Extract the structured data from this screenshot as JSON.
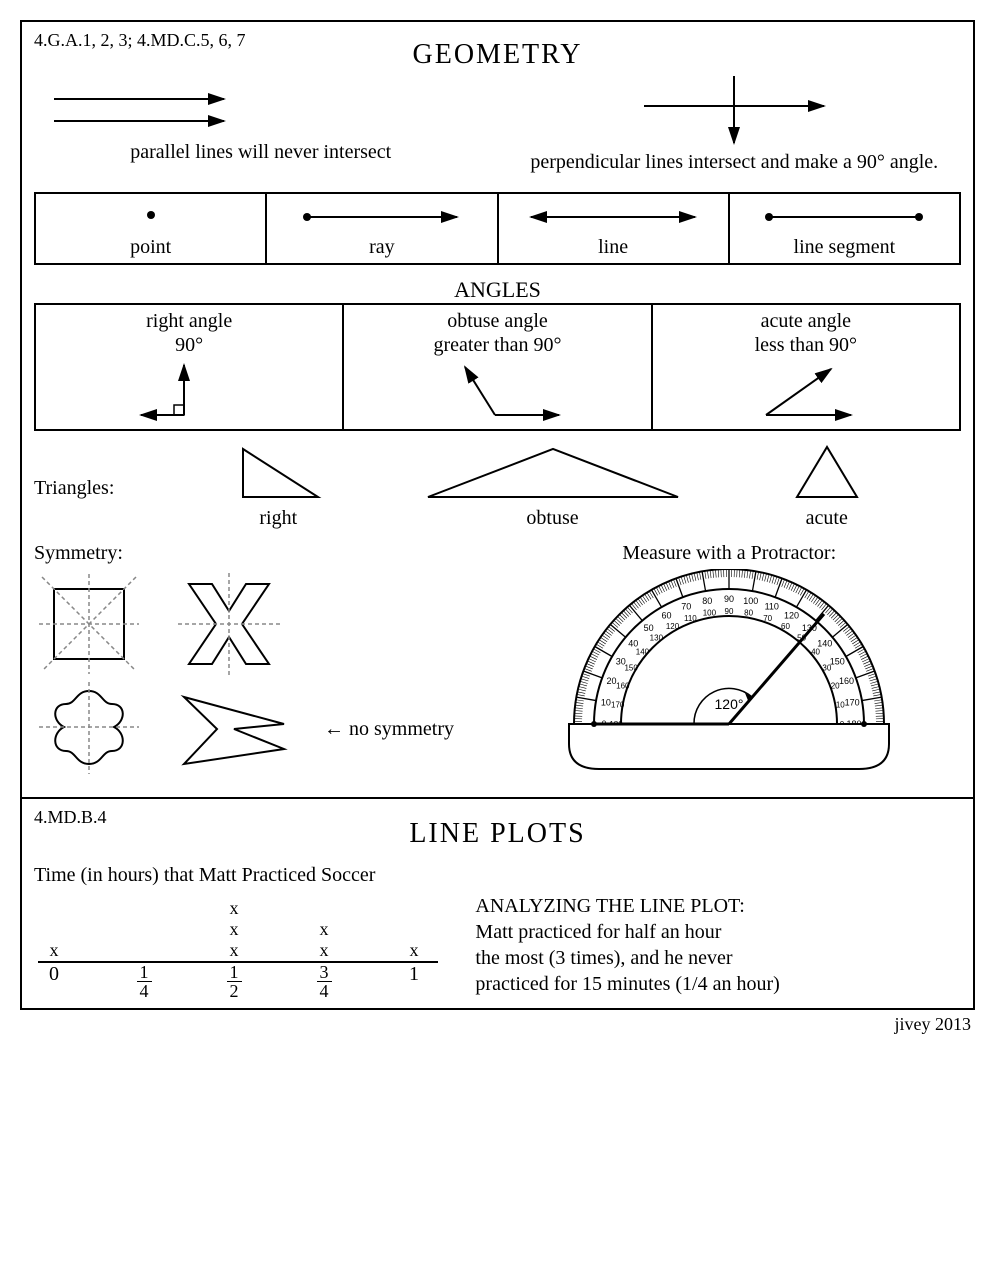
{
  "geometry": {
    "standards": "4.G.A.1, 2, 3; 4.MD.C.5, 6, 7",
    "title": "GEOMETRY",
    "parallel_caption": "parallel lines will never intersect",
    "perpendicular_caption": "perpendicular lines intersect and make a 90° angle.",
    "primitives": {
      "point": "point",
      "ray": "ray",
      "line": "line",
      "segment": "line segment"
    },
    "angles": {
      "title": "ANGLES",
      "right_title": "right angle",
      "right_sub": "90°",
      "obtuse_title": "obtuse angle",
      "obtuse_sub": "greater than 90°",
      "acute_title": "acute angle",
      "acute_sub": "less than 90°"
    },
    "triangles": {
      "label": "Triangles:",
      "right": "right",
      "obtuse": "obtuse",
      "acute": "acute"
    },
    "symmetry_label": "Symmetry:",
    "no_symmetry": "← no symmetry",
    "protractor_label": "Measure with a Protractor:",
    "protractor_angle": "120°"
  },
  "lineplots": {
    "standards": "4.MD.B.4",
    "title": "LINE PLOTS",
    "plot_title": "Time (in hours) that Matt Practiced Soccer",
    "ticks_whole": {
      "0": "0",
      "4": "1"
    },
    "ticks_frac": {
      "1": [
        "1",
        "4"
      ],
      "2": [
        "1",
        "2"
      ],
      "3": [
        "3",
        "4"
      ]
    },
    "x_counts": {
      "0": 1,
      "1": 0,
      "2": 3,
      "3": 2,
      "4": 1
    },
    "analysis_title": "ANALYZING THE LINE PLOT:",
    "analysis_l1": "Matt practiced for half an hour",
    "analysis_l2": "the most (3 times), and he never",
    "analysis_l3": "practiced for 15 minutes (1/4 an hour)"
  },
  "footer": "jivey 2013",
  "colors": {
    "stroke": "#000000",
    "bg": "#ffffff",
    "dash": "#888888"
  }
}
